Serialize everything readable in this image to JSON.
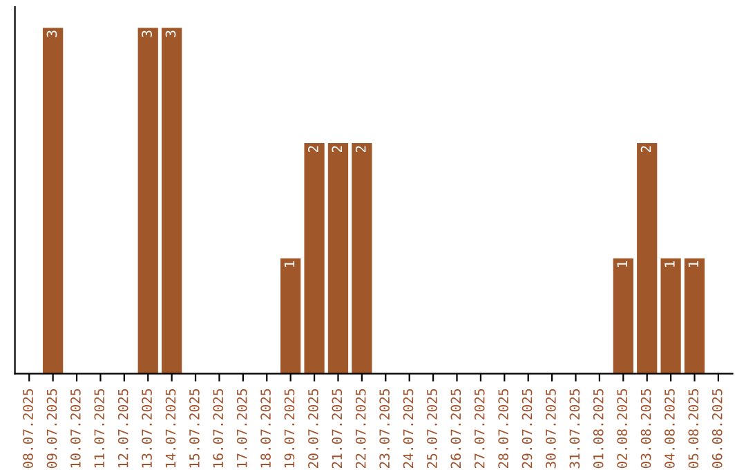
{
  "chart_data": {
    "type": "bar",
    "categories": [
      "08.07.2025",
      "09.07.2025",
      "10.07.2025",
      "11.07.2025",
      "12.07.2025",
      "13.07.2025",
      "14.07.2025",
      "15.07.2025",
      "16.07.2025",
      "17.07.2025",
      "18.07.2025",
      "19.07.2025",
      "20.07.2025",
      "21.07.2025",
      "22.07.2025",
      "23.07.2025",
      "24.07.2025",
      "25.07.2025",
      "26.07.2025",
      "27.07.2025",
      "28.07.2025",
      "29.07.2025",
      "30.07.2025",
      "31.07.2025",
      "01.08.2025",
      "02.08.2025",
      "03.08.2025",
      "04.08.2025",
      "05.08.2025",
      "06.08.2025"
    ],
    "values": [
      0,
      3,
      0,
      0,
      0,
      3,
      3,
      0,
      0,
      0,
      0,
      1,
      2,
      2,
      2,
      0,
      0,
      0,
      0,
      0,
      0,
      0,
      0,
      0,
      0,
      1,
      2,
      1,
      1,
      0
    ],
    "value_labels": [
      null,
      "3",
      null,
      null,
      null,
      "3",
      "3",
      null,
      null,
      null,
      null,
      "1",
      "2",
      "2",
      "2",
      null,
      null,
      null,
      null,
      null,
      null,
      null,
      null,
      null,
      null,
      "1",
      "2",
      "1",
      "1",
      null
    ],
    "color": "#a0582a",
    "tick_labels": "x",
    "grid": false
  }
}
